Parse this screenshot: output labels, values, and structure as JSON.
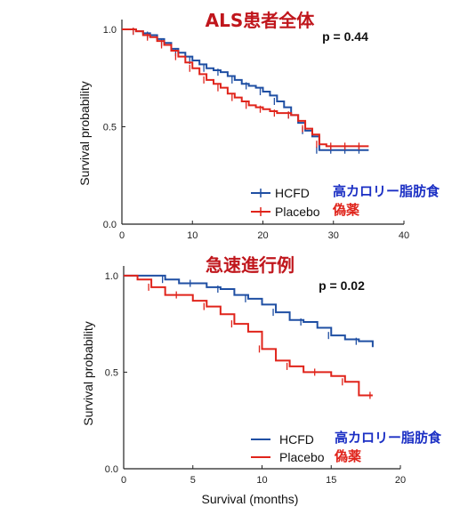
{
  "colors": {
    "hcfd": "#1f4fa3",
    "placebo": "#e0241b",
    "title": "#c0161c",
    "jp_blue": "#1b2fc4",
    "jp_red": "#e0241b"
  },
  "chart_data": [
    {
      "type": "line",
      "title": "ALS患者全体",
      "pvalue": "p = 0.44",
      "ylabel": "Survival probability",
      "xlabel": "",
      "xlim": [
        0,
        40
      ],
      "ylim": [
        0,
        1.05
      ],
      "xticks": [
        "0",
        "10",
        "20",
        "30",
        "40"
      ],
      "yticks": [
        "0.0",
        "0.5",
        "1.0"
      ],
      "legend": [
        {
          "label": "HCFD",
          "jp": "高カロリー脂肪食",
          "series": "HCFD"
        },
        {
          "label": "Placebo",
          "jp": "偽薬",
          "series": "Placebo"
        }
      ],
      "series": [
        {
          "name": "HCFD",
          "x": [
            0,
            1,
            2,
            3,
            4,
            5,
            6,
            7,
            8,
            9,
            10,
            11,
            12,
            13,
            14,
            15,
            16,
            17,
            18,
            19,
            20,
            21,
            22,
            23,
            24,
            25,
            26,
            27,
            28,
            29,
            30,
            31,
            32,
            33,
            34,
            35
          ],
          "y": [
            1.0,
            1.0,
            0.99,
            0.98,
            0.97,
            0.95,
            0.93,
            0.9,
            0.88,
            0.86,
            0.84,
            0.82,
            0.8,
            0.79,
            0.78,
            0.76,
            0.74,
            0.72,
            0.71,
            0.7,
            0.68,
            0.66,
            0.63,
            0.6,
            0.56,
            0.52,
            0.48,
            0.45,
            0.38,
            0.38,
            0.38,
            0.38,
            0.38,
            0.38,
            0.38,
            0.38
          ]
        },
        {
          "name": "Placebo",
          "x": [
            0,
            1,
            2,
            3,
            4,
            5,
            6,
            7,
            8,
            9,
            10,
            11,
            12,
            13,
            14,
            15,
            16,
            17,
            18,
            19,
            20,
            21,
            22,
            23,
            24,
            25,
            26,
            27,
            28,
            29,
            30,
            31,
            32,
            33,
            34,
            35
          ],
          "y": [
            1.0,
            1.0,
            0.99,
            0.97,
            0.96,
            0.94,
            0.92,
            0.89,
            0.86,
            0.83,
            0.8,
            0.77,
            0.74,
            0.72,
            0.7,
            0.67,
            0.65,
            0.63,
            0.61,
            0.6,
            0.59,
            0.58,
            0.57,
            0.57,
            0.56,
            0.53,
            0.49,
            0.46,
            0.41,
            0.4,
            0.4,
            0.4,
            0.4,
            0.4,
            0.4,
            0.4
          ]
        }
      ]
    },
    {
      "type": "line",
      "title": "急速進行例",
      "pvalue": "p = 0.02",
      "ylabel": "Survival probability",
      "xlabel": "Survival (months)",
      "xlim": [
        0,
        20
      ],
      "ylim": [
        0,
        1.05
      ],
      "xticks": [
        "0",
        "5",
        "10",
        "15",
        "20"
      ],
      "yticks": [
        "0.0",
        "0.5",
        "1.0"
      ],
      "legend": [
        {
          "label": "HCFD",
          "jp": "高カロリー脂肪食",
          "series": "HCFD"
        },
        {
          "label": "Placebo",
          "jp": "偽薬",
          "series": "Placebo"
        }
      ],
      "series": [
        {
          "name": "HCFD",
          "x": [
            0,
            2,
            3,
            4,
            5,
            6,
            7,
            8,
            9,
            10,
            11,
            12,
            13,
            14,
            15,
            16,
            17,
            18
          ],
          "y": [
            1.0,
            1.0,
            0.98,
            0.96,
            0.96,
            0.94,
            0.93,
            0.9,
            0.88,
            0.85,
            0.81,
            0.77,
            0.76,
            0.73,
            0.69,
            0.67,
            0.66,
            0.63
          ]
        },
        {
          "name": "Placebo",
          "x": [
            0,
            1,
            2,
            3,
            4,
            5,
            6,
            7,
            8,
            9,
            10,
            11,
            12,
            13,
            14,
            15,
            16,
            17,
            18
          ],
          "y": [
            1.0,
            0.98,
            0.94,
            0.9,
            0.9,
            0.87,
            0.84,
            0.8,
            0.75,
            0.71,
            0.62,
            0.56,
            0.53,
            0.5,
            0.5,
            0.48,
            0.45,
            0.38,
            0.38
          ]
        }
      ]
    }
  ]
}
